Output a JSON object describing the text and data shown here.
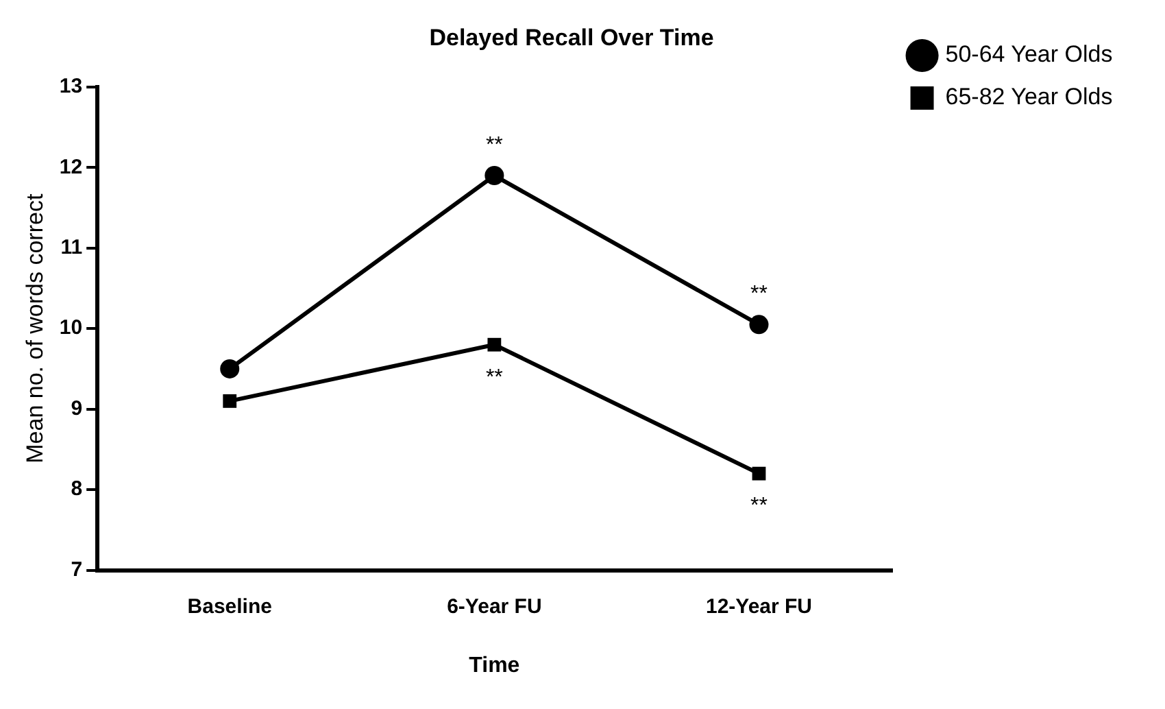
{
  "chart_data": {
    "type": "line",
    "title": "Delayed Recall Over Time",
    "xlabel": "Time",
    "ylabel": "Mean no. of words correct",
    "categories": [
      "Baseline",
      "6-Year FU",
      "12-Year FU"
    ],
    "series": [
      {
        "name": "50-64 Year Olds",
        "color": "#000000",
        "marker": "circle",
        "values": [
          9.5,
          11.9,
          10.05
        ]
      },
      {
        "name": "65-82 Year Olds",
        "color": "#000000",
        "marker": "square",
        "values": [
          9.1,
          9.8,
          8.2
        ]
      }
    ],
    "ylim": [
      7,
      13
    ],
    "yticks": [
      7,
      8,
      9,
      10,
      11,
      12,
      13
    ],
    "grid": false,
    "legend": "top right",
    "line_style": "solid",
    "annotations": [
      {
        "text": "**",
        "x": "6-Year FU",
        "y": 11.9
      },
      {
        "text": "**",
        "x": "12-Year FU",
        "y": 10.05
      },
      {
        "text": "**",
        "x": "6-Year FU",
        "y": 9.8
      },
      {
        "text": "**",
        "x": "12-Year FU",
        "y": 8.2
      }
    ]
  }
}
